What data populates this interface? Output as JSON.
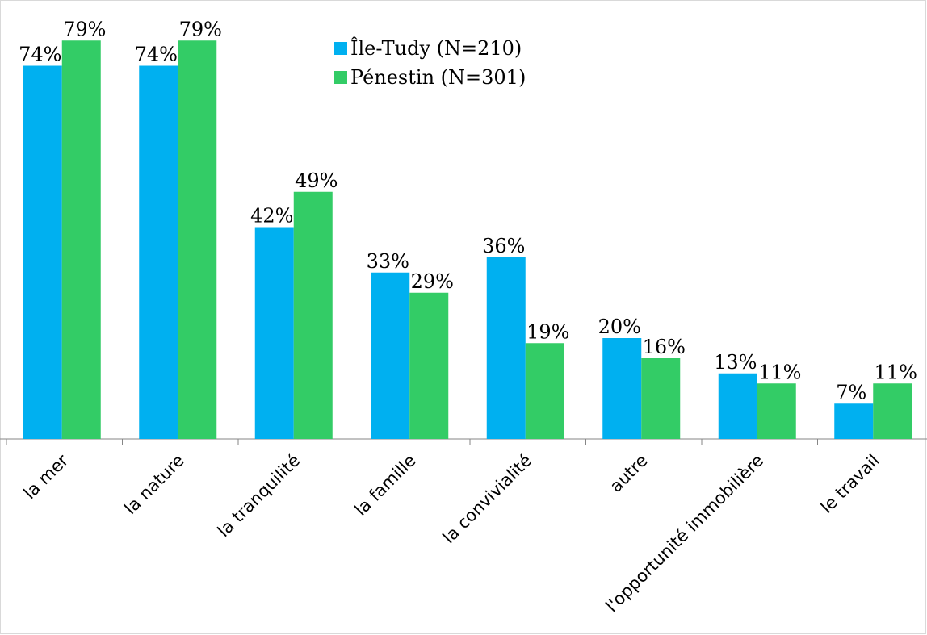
{
  "chart_data": {
    "type": "bar",
    "categories": [
      "la mer",
      "la nature",
      "la tranquilité",
      "la famille",
      "la convivialité",
      "autre",
      "l'opportunité immobilière",
      "le travail"
    ],
    "series": [
      {
        "name": "Île-Tudy (N=210)",
        "color": "#00b0f0",
        "values": [
          74,
          74,
          42,
          33,
          36,
          20,
          13,
          7
        ]
      },
      {
        "name": "Pénestin (N=301)",
        "color": "#33cc66",
        "values": [
          79,
          79,
          49,
          29,
          19,
          16,
          11,
          11
        ]
      }
    ],
    "value_suffix": "%",
    "ylim": [
      0,
      80
    ],
    "grid": false,
    "legend_position": "top-center",
    "title": "",
    "xlabel": "",
    "ylabel": ""
  }
}
